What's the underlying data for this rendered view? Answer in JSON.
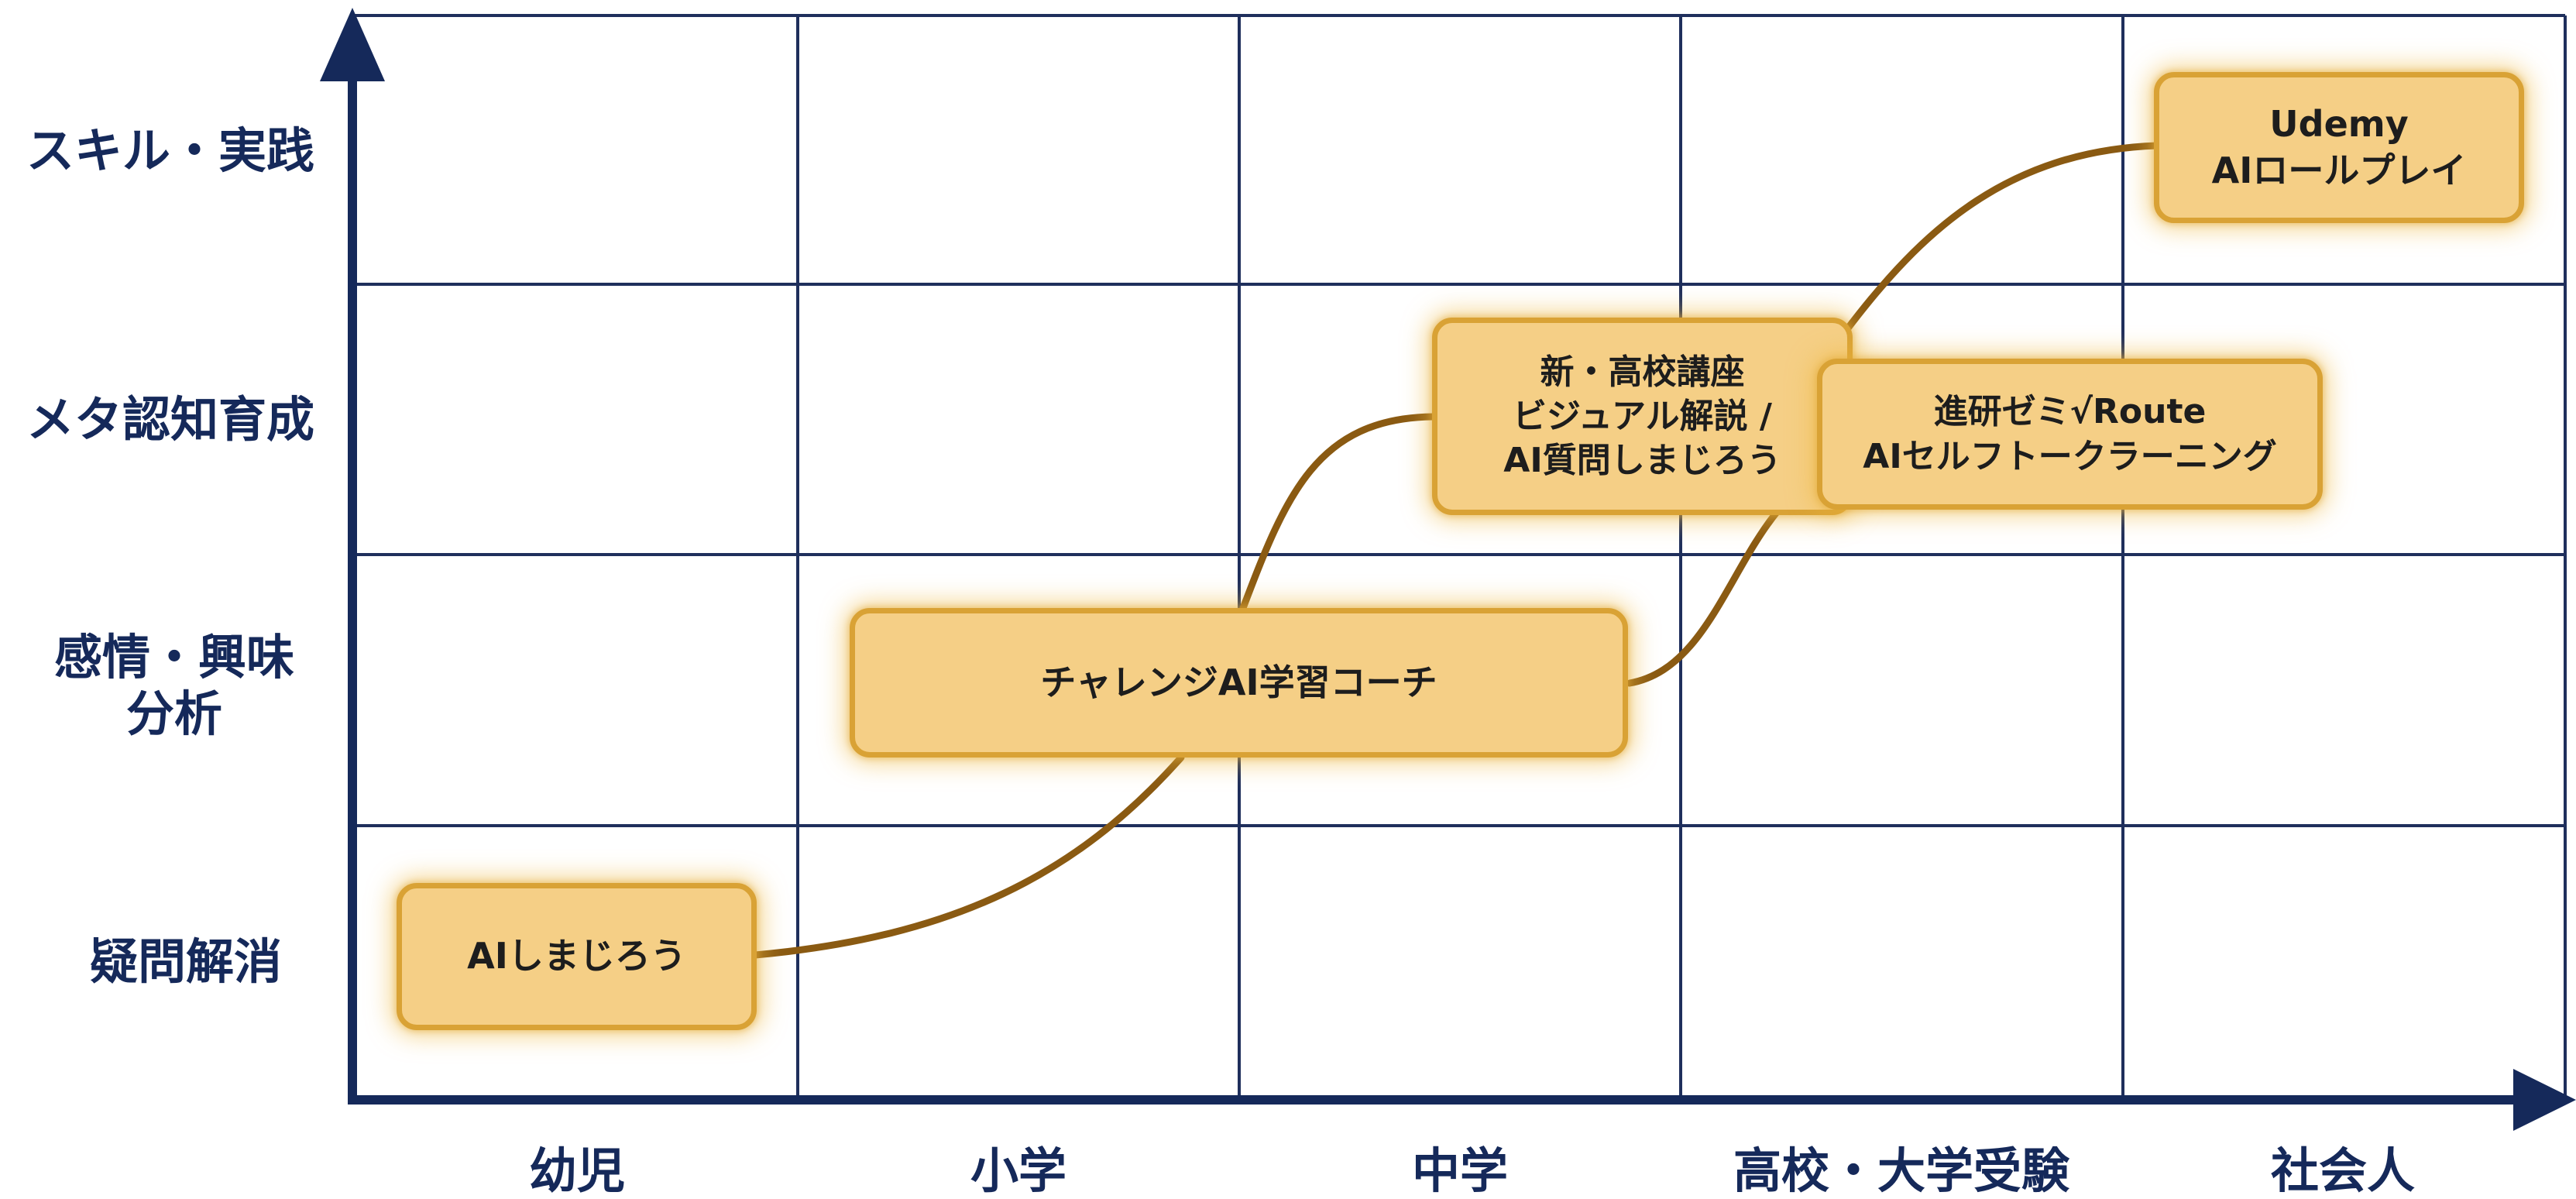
{
  "y_axis": {
    "rows": [
      {
        "lines": [
          "スキル・実践"
        ]
      },
      {
        "lines": [
          "メタ認知育成"
        ]
      },
      {
        "lines": [
          "感情・興味",
          "分析"
        ]
      },
      {
        "lines": [
          "疑問解消"
        ]
      }
    ]
  },
  "x_axis": {
    "columns": [
      "幼児",
      "小学",
      "中学",
      "高校・大学受験",
      "社会人"
    ]
  },
  "nodes": [
    {
      "id": "ai-shimajiro",
      "lines": [
        "AIしまじろう"
      ]
    },
    {
      "id": "challenge-coach",
      "lines": [
        "チャレンジAI学習コーチ"
      ]
    },
    {
      "id": "shin-koukou",
      "lines": [
        "新・高校講座",
        "ビジュアル解説 /",
        "AI質問しまじろう"
      ]
    },
    {
      "id": "shinken-route",
      "lines": [
        "進研ゼミ√Route",
        "AIセルフトークラーニング"
      ]
    },
    {
      "id": "udemy",
      "lines": [
        "Udemy",
        "AIロールプレイ"
      ]
    }
  ],
  "colors": {
    "axis": "#15295a",
    "grid": "#1f2f5c",
    "node_fill": "#f5cf86",
    "node_border": "#d9a235",
    "connector": "#8a5a12"
  }
}
